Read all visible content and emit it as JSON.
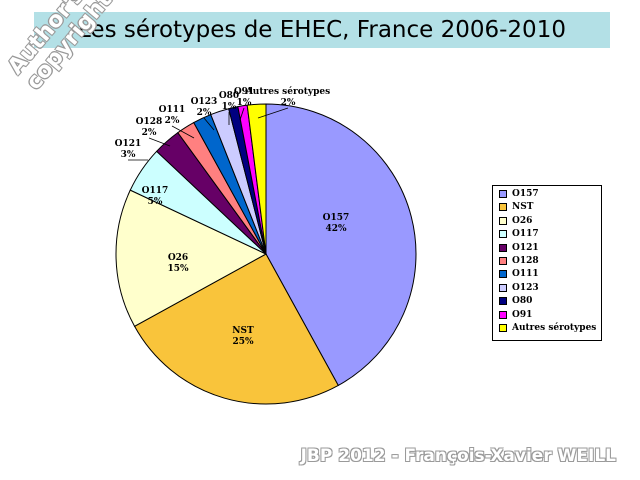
{
  "title": "Les sérotypes de EHEC, France 2006-2010",
  "watermark": "Author's\ncopyright ©",
  "footer": "JBP 2012 - François-Xavier WEILL",
  "chart_data": {
    "type": "pie",
    "categories": [
      "O157",
      "NST",
      "O26",
      "O117",
      "O121",
      "O128",
      "O111",
      "O123",
      "O80",
      "O91",
      "Autres sérotypes"
    ],
    "values": [
      42,
      25,
      15,
      5,
      3,
      2,
      2,
      2,
      1,
      1,
      2
    ],
    "labels": [
      "42%",
      "25%",
      "15%",
      "5%",
      "3%",
      "2%",
      "2%",
      "2%",
      "1%",
      "1%",
      "2%"
    ],
    "colors": [
      "#9999ff",
      "#f9c43b",
      "#ffffcc",
      "#ccffff",
      "#660066",
      "#ff8080",
      "#0066cc",
      "#ccccff",
      "#000080",
      "#ff00ff",
      "#ffff00"
    ],
    "legend_position": "right"
  }
}
